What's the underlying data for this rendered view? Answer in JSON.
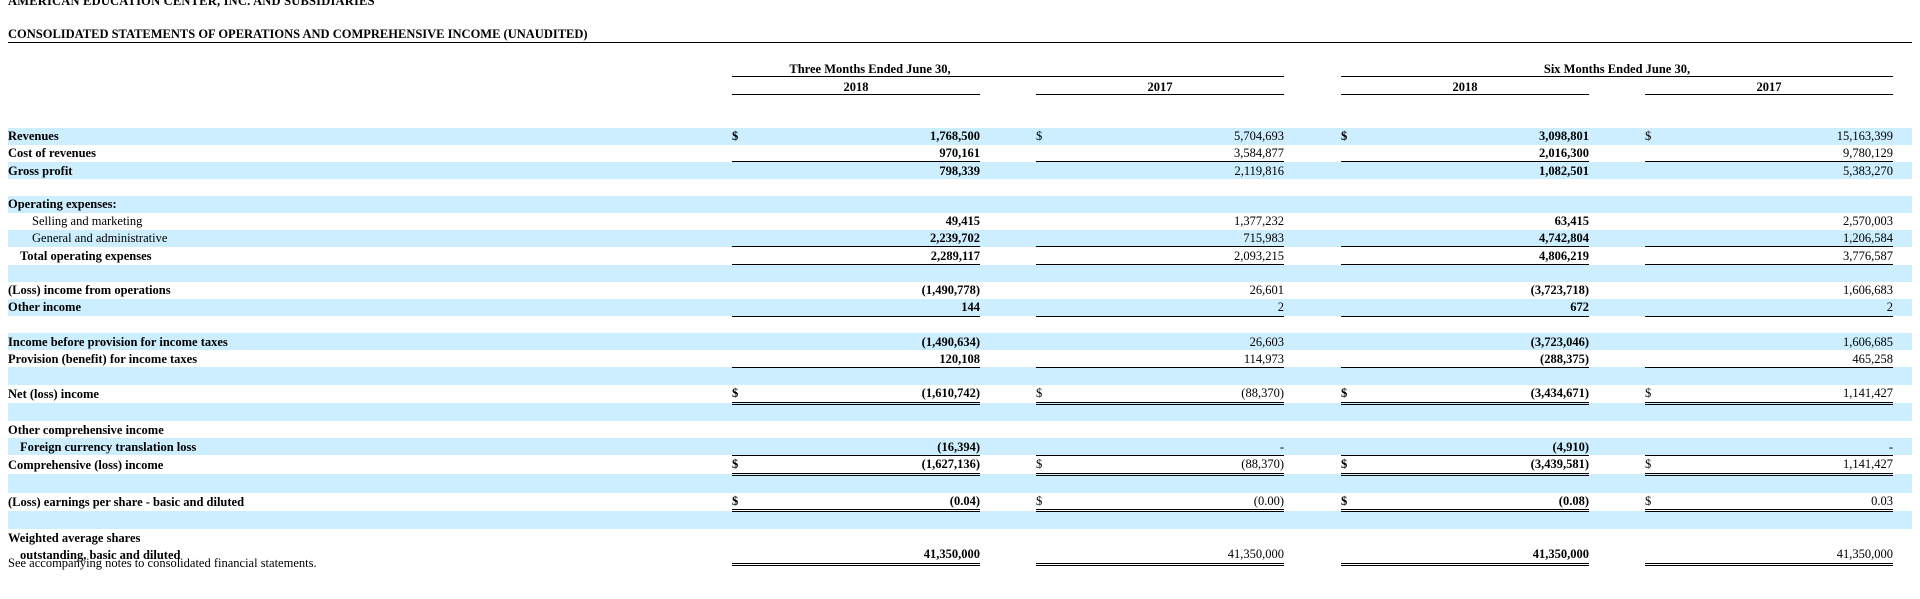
{
  "header": {
    "company": "AMERICAN EDUCATION CENTER, INC. AND SUBSIDIARIES",
    "title": "CONSOLIDATED STATEMENTS OF OPERATIONS AND COMPREHENSIVE INCOME (UNAUDITED)"
  },
  "columns": {
    "three_months": "Three Months Ended June 30,",
    "six_months": "Six Months Ended June 30,",
    "years": [
      "2018",
      "2017",
      "2018",
      "2017"
    ]
  },
  "rows": [
    {
      "label": "",
      "indent": 0,
      "shade": false,
      "values": [
        "",
        "",
        "",
        ""
      ]
    },
    {
      "label": "Revenues",
      "indent": 0,
      "shade": true,
      "dollar": true,
      "values": [
        "1,768,500",
        "5,704,693",
        "3,098,801",
        "15,163,399"
      ]
    },
    {
      "label": "Cost of revenues",
      "indent": 0,
      "shade": false,
      "rule": "single",
      "values": [
        "970,161",
        "3,584,877",
        "2,016,300",
        "9,780,129"
      ]
    },
    {
      "label": "Gross profit",
      "indent": 0,
      "shade": true,
      "values": [
        "798,339",
        "2,119,816",
        "1,082,501",
        "5,383,270"
      ]
    },
    {
      "label": "",
      "indent": 0,
      "shade": false,
      "values": [
        "",
        "",
        "",
        ""
      ]
    },
    {
      "label": "Operating expenses:",
      "indent": 0,
      "shade": true,
      "values": [
        "",
        "",
        "",
        ""
      ]
    },
    {
      "label": "Selling and marketing",
      "indent": 1,
      "shade": false,
      "values": [
        "49,415",
        "1,377,232",
        "63,415",
        "2,570,003"
      ]
    },
    {
      "label": "General and administrative",
      "indent": 1,
      "shade": true,
      "rule": "single",
      "values": [
        "2,239,702",
        "715,983",
        "4,742,804",
        "1,206,584"
      ]
    },
    {
      "label": "Total operating expenses",
      "indent": 2,
      "shade": false,
      "rule": "single",
      "values": [
        "2,289,117",
        "2,093,215",
        "4,806,219",
        "3,776,587"
      ]
    },
    {
      "label": "",
      "indent": 0,
      "shade": true,
      "values": [
        "",
        "",
        "",
        ""
      ]
    },
    {
      "label": "(Loss) income from operations",
      "indent": 0,
      "shade": false,
      "values": [
        "(1,490,778)",
        "26,601",
        "(3,723,718)",
        "1,606,683"
      ]
    },
    {
      "label": "Other income",
      "indent": 0,
      "shade": true,
      "rule": "single",
      "values": [
        "144",
        "2",
        "672",
        "2"
      ]
    },
    {
      "label": "",
      "indent": 0,
      "shade": false,
      "values": [
        "",
        "",
        "",
        ""
      ]
    },
    {
      "label": "Income before provision for income taxes",
      "indent": 0,
      "shade": true,
      "values": [
        "(1,490,634)",
        "26,603",
        "(3,723,046)",
        "1,606,685"
      ]
    },
    {
      "label": "Provision (benefit) for income taxes",
      "indent": 0,
      "shade": false,
      "rule": "single",
      "values": [
        "120,108",
        "114,973",
        "(288,375)",
        "465,258"
      ]
    },
    {
      "label": "",
      "indent": 0,
      "shade": true,
      "values": [
        "",
        "",
        "",
        ""
      ]
    },
    {
      "label": "Net (loss) income",
      "indent": 0,
      "shade": false,
      "dollar": true,
      "rule": "double",
      "values": [
        "(1,610,742)",
        "(88,370)",
        "(3,434,671)",
        "1,141,427"
      ]
    },
    {
      "label": "",
      "indent": 0,
      "shade": true,
      "values": [
        "",
        "",
        "",
        ""
      ]
    },
    {
      "label": "Other comprehensive income",
      "indent": 0,
      "shade": false,
      "values": [
        "",
        "",
        "",
        ""
      ]
    },
    {
      "label": "Foreign currency translation loss",
      "indent": 2,
      "shade": true,
      "rule": "single",
      "values": [
        "(16,394)",
        "-",
        "(4,910)",
        "-"
      ]
    },
    {
      "label": "Comprehensive (loss) income",
      "indent": 0,
      "shade": false,
      "dollar": true,
      "rule": "double",
      "values": [
        "(1,627,136)",
        "(88,370)",
        "(3,439,581)",
        "1,141,427"
      ]
    },
    {
      "label": "",
      "indent": 0,
      "shade": true,
      "values": [
        "",
        "",
        "",
        ""
      ]
    },
    {
      "label": "(Loss) earnings per share - basic and diluted",
      "indent": 0,
      "shade": false,
      "dollar": true,
      "rule": "double",
      "values": [
        "(0.04)",
        "(0.00)",
        "(0.08)",
        "0.03"
      ]
    },
    {
      "label": "",
      "indent": 0,
      "shade": true,
      "values": [
        "",
        "",
        "",
        ""
      ]
    },
    {
      "label": "Weighted average shares",
      "indent": 0,
      "shade": false,
      "values": [
        "",
        "",
        "",
        ""
      ]
    },
    {
      "label": "outstanding, basic and diluted",
      "indent": 2,
      "shade": false,
      "rule": "double",
      "values": [
        "41,350,000",
        "41,350,000",
        "41,350,000",
        "41,350,000"
      ]
    }
  ],
  "dollar_sign": "$",
  "footnote": "See accompanying notes to consolidated financial statements.",
  "colors": {
    "row_shade": "#cceeff",
    "text": "#000000"
  }
}
